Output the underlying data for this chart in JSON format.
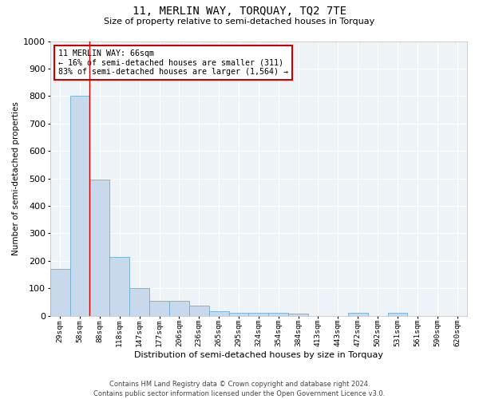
{
  "title": "11, MERLIN WAY, TORQUAY, TQ2 7TE",
  "subtitle": "Size of property relative to semi-detached houses in Torquay",
  "xlabel": "Distribution of semi-detached houses by size in Torquay",
  "ylabel": "Number of semi-detached properties",
  "categories": [
    "29sqm",
    "58sqm",
    "88sqm",
    "118sqm",
    "147sqm",
    "177sqm",
    "206sqm",
    "236sqm",
    "265sqm",
    "295sqm",
    "324sqm",
    "354sqm",
    "384sqm",
    "413sqm",
    "443sqm",
    "472sqm",
    "502sqm",
    "531sqm",
    "561sqm",
    "590sqm",
    "620sqm"
  ],
  "values": [
    170,
    800,
    495,
    215,
    100,
    55,
    55,
    37,
    18,
    12,
    10,
    10,
    9,
    0,
    0,
    10,
    0,
    10,
    0,
    0,
    0
  ],
  "bar_color": "#c9d9ec",
  "bar_edge_color": "#6baed6",
  "property_line_x": 1.5,
  "property_sqm": 66,
  "pct_smaller": 16,
  "count_smaller": 311,
  "pct_larger": 83,
  "count_larger": 1564,
  "annotation_text": "11 MERLIN WAY: 66sqm\n← 16% of semi-detached houses are smaller (311)\n83% of semi-detached houses are larger (1,564) →",
  "ylim": [
    0,
    1000
  ],
  "yticks": [
    0,
    100,
    200,
    300,
    400,
    500,
    600,
    700,
    800,
    900,
    1000
  ],
  "bg_color": "#eef3f8",
  "footer": "Contains HM Land Registry data © Crown copyright and database right 2024.\nContains public sector information licensed under the Open Government Licence v3.0.",
  "annotation_box_color": "#ffffff",
  "annotation_box_edge": "#cc0000",
  "line_color": "#cc0000",
  "fig_width": 6.0,
  "fig_height": 5.0,
  "dpi": 100
}
